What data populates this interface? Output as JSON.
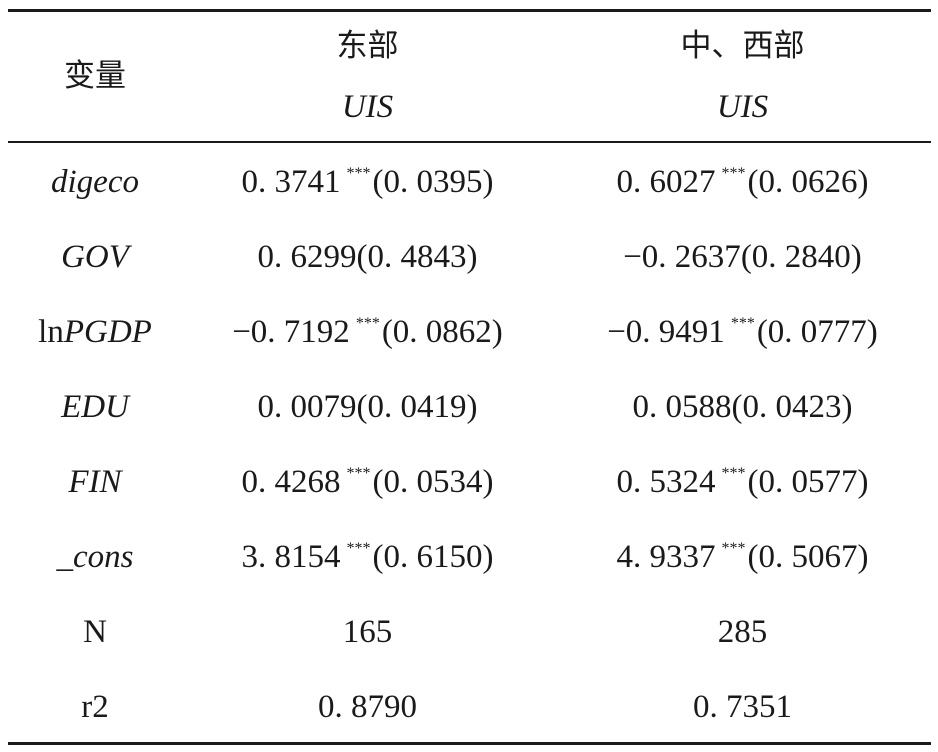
{
  "header": {
    "variable_label": "变量",
    "group_east": "东部",
    "group_central_west": "中、西部",
    "dep_var_east": "UIS",
    "dep_var_central_west": "UIS"
  },
  "rows": [
    {
      "var": "digeco",
      "var_prefix": "",
      "var_italic": true,
      "east_coef": "0. 3741",
      "east_stars": "***",
      "east_se": "(0. 0395)",
      "cw_coef": "0. 6027",
      "cw_stars": "***",
      "cw_se": "(0. 0626)"
    },
    {
      "var": "GOV",
      "var_prefix": "",
      "var_italic": true,
      "east_coef": "0. 6299",
      "east_stars": "",
      "east_se": "(0. 4843)",
      "cw_coef": "−0. 2637",
      "cw_stars": "",
      "cw_se": "(0. 2840)"
    },
    {
      "var": "PGDP",
      "var_prefix": "ln",
      "var_italic": true,
      "east_coef": "−0. 7192",
      "east_stars": "***",
      "east_se": "(0. 0862)",
      "cw_coef": "−0. 9491",
      "cw_stars": "***",
      "cw_se": "(0. 0777)"
    },
    {
      "var": "EDU",
      "var_prefix": "",
      "var_italic": true,
      "east_coef": "0. 0079",
      "east_stars": "",
      "east_se": "(0. 0419)",
      "cw_coef": "0. 0588",
      "cw_stars": "",
      "cw_se": "(0. 0423)"
    },
    {
      "var": "FIN",
      "var_prefix": "",
      "var_italic": true,
      "east_coef": "0. 4268",
      "east_stars": "***",
      "east_se": "(0. 0534)",
      "cw_coef": "0. 5324",
      "cw_stars": "***",
      "cw_se": "(0. 0577)"
    },
    {
      "var": "_cons",
      "var_prefix": "",
      "var_italic": true,
      "east_coef": "3. 8154",
      "east_stars": "***",
      "east_se": "(0. 6150)",
      "cw_coef": "4. 9337",
      "cw_stars": "***",
      "cw_se": "(0. 5067)"
    },
    {
      "var": "N",
      "var_prefix": "",
      "var_italic": false,
      "east_coef": "165",
      "east_stars": "",
      "east_se": "",
      "cw_coef": "285",
      "cw_stars": "",
      "cw_se": ""
    },
    {
      "var": "r2",
      "var_prefix": "",
      "var_italic": false,
      "east_coef": "0. 8790",
      "east_stars": "",
      "east_se": "",
      "cw_coef": "0. 7351",
      "cw_stars": "",
      "cw_se": ""
    }
  ]
}
